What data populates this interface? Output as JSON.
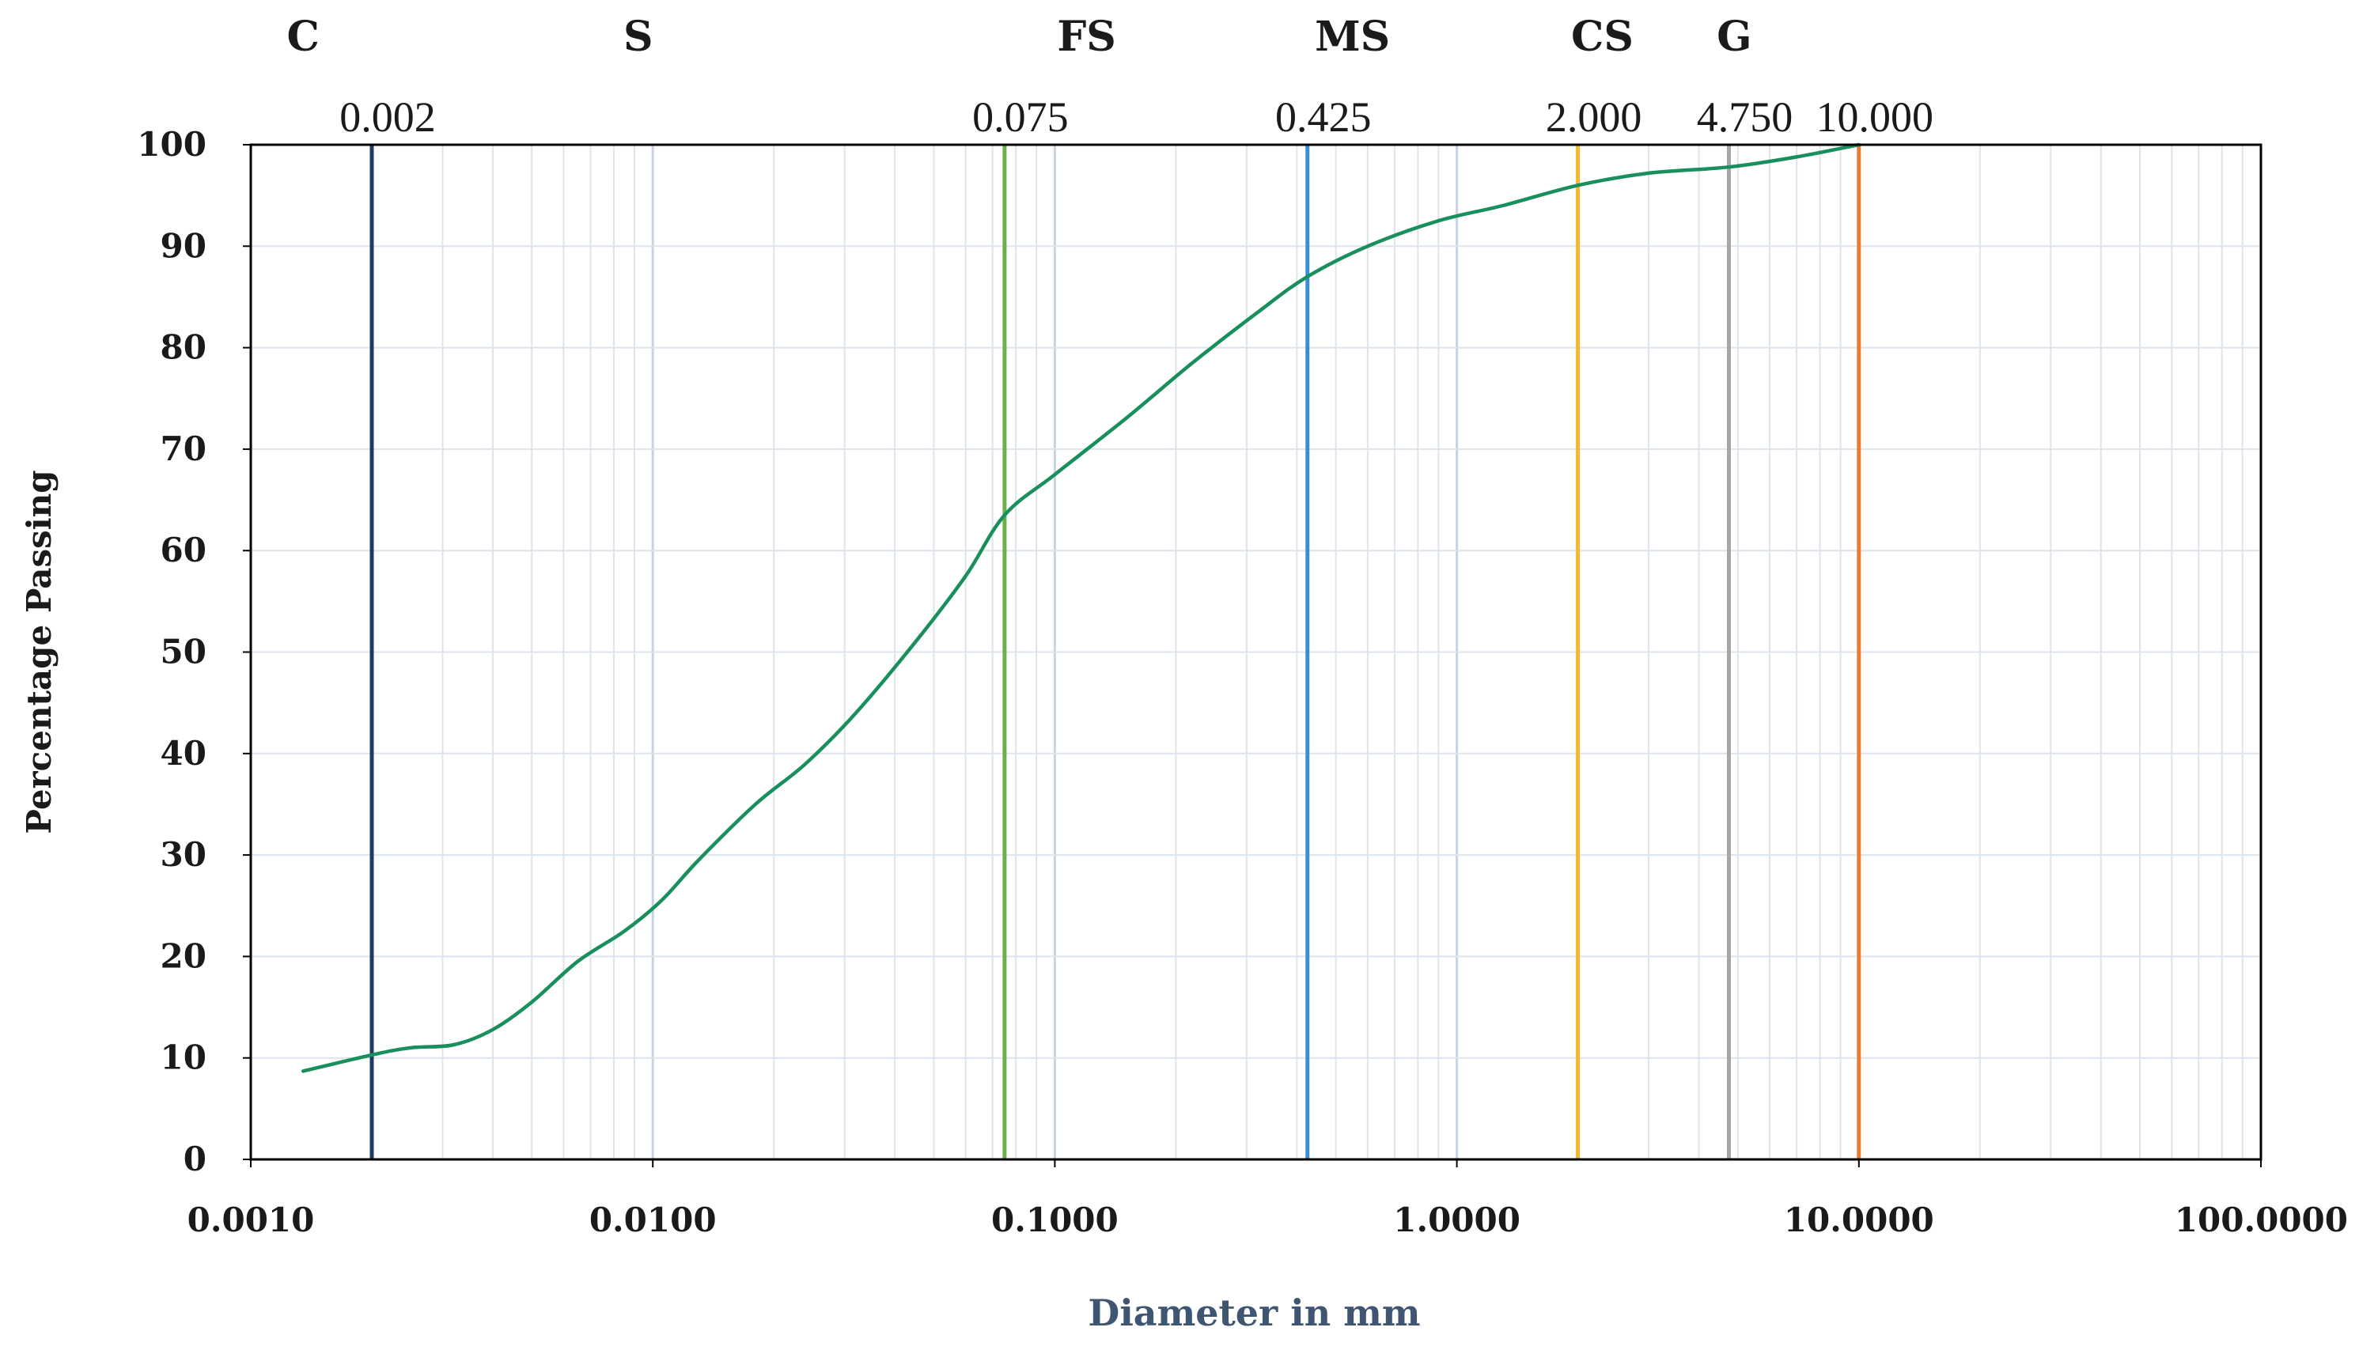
{
  "chart_data": {
    "type": "line",
    "xscale": "log",
    "xlim": [
      0.001,
      100
    ],
    "ylim": [
      0,
      100
    ],
    "xlabel": "Diameter in mm",
    "ylabel": "Percentage Passing",
    "grid": true,
    "x_ticks": [
      "0.0010",
      "0.0100",
      "0.1000",
      "1.0000",
      "10.0000",
      "100.0000"
    ],
    "y_ticks": [
      "0",
      "10",
      "20",
      "30",
      "40",
      "50",
      "60",
      "70",
      "80",
      "90",
      "100"
    ],
    "zones": [
      {
        "label": "C",
        "x": 0.00135
      },
      {
        "label": "S",
        "x": 0.0092
      },
      {
        "label": "FS",
        "x": 0.12
      },
      {
        "label": "MS",
        "x": 0.55
      },
      {
        "label": "CS",
        "x": 2.3
      },
      {
        "label": "G",
        "x": 4.9
      }
    ],
    "reference_lines": [
      {
        "value": 0.002,
        "label": "0.002",
        "color": "#1f3b64"
      },
      {
        "value": 0.075,
        "label": "0.075",
        "color": "#6ab04c"
      },
      {
        "value": 0.425,
        "label": "0.425",
        "color": "#3a8fd0"
      },
      {
        "value": 2.0,
        "label": "2.000",
        "color": "#f5b82e"
      },
      {
        "value": 4.75,
        "label": "4.750",
        "color": "#a6a6a6"
      },
      {
        "value": 10.0,
        "label": "10.000",
        "color": "#ef7a2e"
      }
    ],
    "series": [
      {
        "color": "#1a8f5e",
        "x": [
          0.00135,
          0.002,
          0.0025,
          0.0032,
          0.004,
          0.005,
          0.0065,
          0.0085,
          0.0105,
          0.013,
          0.018,
          0.024,
          0.032,
          0.045,
          0.06,
          0.075,
          0.1,
          0.15,
          0.22,
          0.32,
          0.425,
          0.6,
          0.9,
          1.3,
          2.0,
          3.0,
          4.75,
          7.0,
          10.0
        ],
        "y": [
          8.7,
          10.3,
          11.0,
          11.3,
          12.8,
          15.5,
          19.5,
          22.5,
          25.5,
          29.5,
          35.0,
          39.0,
          44.0,
          51.0,
          57.5,
          63.5,
          67.5,
          73.0,
          78.5,
          83.5,
          87.0,
          90.0,
          92.5,
          94.0,
          96.0,
          97.2,
          97.8,
          98.8,
          100.0
        ]
      }
    ]
  }
}
